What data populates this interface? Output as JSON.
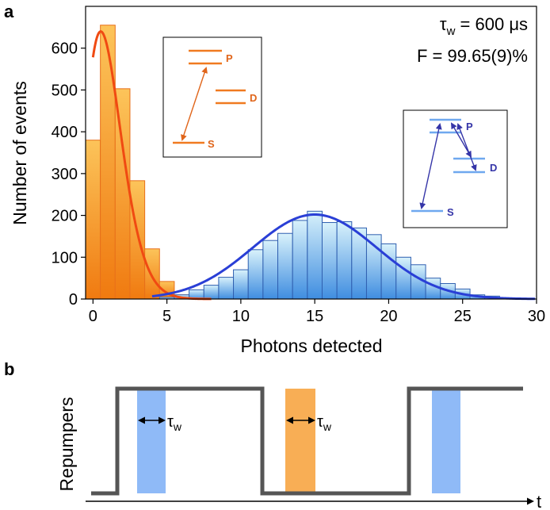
{
  "panel_a_label": "a",
  "panel_b_label": "b",
  "annotation_tau": "τ",
  "annotation_tau_sub": "w",
  "annotation_tau_value": " = 600 μs",
  "annotation_fidelity": "F = 99.65(9)%",
  "inset_bright": {
    "levels": [
      "P",
      "D",
      "S"
    ]
  },
  "inset_dark": {
    "levels": [
      "P",
      "D",
      "S"
    ]
  },
  "colors": {
    "orange_bar": "#f7941d",
    "orange_fit": "#f04a12",
    "blue_bar": "#5aa6e6",
    "blue_fit": "#2a3fd6",
    "inset_orange": "#f07a20",
    "inset_blue": "#6fa8ef",
    "inset_arrow_blue": "#3535a8",
    "timing_line": "#555555",
    "pulse_blue": "#8fbaf7",
    "pulse_orange": "#f8ae55"
  },
  "chart_data": {
    "type": "bar",
    "xlabel": "Photons detected",
    "ylabel": "Number of events",
    "xlim": [
      -0.5,
      30
    ],
    "ylim": [
      0,
      700
    ],
    "xticks": [
      0,
      5,
      10,
      15,
      20,
      25,
      30
    ],
    "yticks": [
      0,
      100,
      200,
      300,
      400,
      500,
      600
    ],
    "bin_width": 1,
    "series": [
      {
        "color": "orange",
        "bins": [
          0,
          1,
          2,
          3,
          4,
          5,
          6,
          7,
          8,
          9,
          10
        ],
        "values": [
          380,
          655,
          503,
          283,
          120,
          42,
          10,
          4,
          2,
          1,
          0
        ]
      },
      {
        "color": "blue",
        "bins": [
          5,
          6,
          7,
          8,
          9,
          10,
          11,
          12,
          13,
          14,
          15,
          16,
          17,
          18,
          19,
          20,
          21,
          22,
          23,
          24,
          25,
          26,
          27,
          28,
          29
        ],
        "values": [
          4,
          10,
          22,
          33,
          52,
          70,
          118,
          140,
          157,
          188,
          210,
          183,
          185,
          170,
          154,
          132,
          100,
          82,
          50,
          37,
          24,
          10,
          7,
          2,
          1
        ]
      }
    ],
    "fits": [
      {
        "color": "orange",
        "model": "poisson",
        "mean": 1.5,
        "peak": 640
      },
      {
        "color": "blue",
        "model": "gaussian",
        "mean": 15,
        "sigma": 4.2,
        "peak": 202
      }
    ]
  },
  "timing_diagram": {
    "ylabel": "Repumpers",
    "xlabel": "t",
    "tau": "τ",
    "tau_sub": "w"
  }
}
